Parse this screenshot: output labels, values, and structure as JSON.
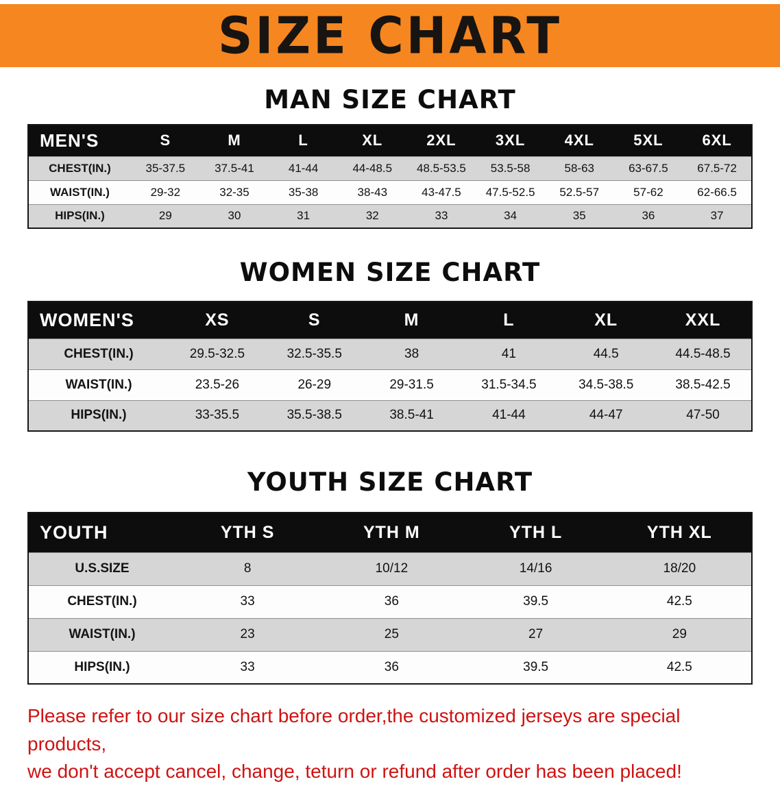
{
  "banner": {
    "title": "SIZE CHART"
  },
  "colors": {
    "banner_bg": "#F6861F",
    "banner_text": "#181411",
    "table_header_bg": "#0D0D0D",
    "table_header_text": "#FFFFFF",
    "row_alt_bg": "#D6D6D6",
    "row_bg": "#FDFDFD",
    "disclaimer_text": "#CE1312"
  },
  "chart_data": [
    {
      "type": "table",
      "title": "MAN SIZE CHART",
      "columns": [
        "MEN'S",
        "S",
        "M",
        "L",
        "XL",
        "2XL",
        "3XL",
        "4XL",
        "5XL",
        "6XL"
      ],
      "rows": [
        [
          "CHEST(IN.)",
          "35-37.5",
          "37.5-41",
          "41-44",
          "44-48.5",
          "48.5-53.5",
          "53.5-58",
          "58-63",
          "63-67.5",
          "67.5-72"
        ],
        [
          "WAIST(IN.)",
          "29-32",
          "32-35",
          "35-38",
          "38-43",
          "43-47.5",
          "47.5-52.5",
          "52.5-57",
          "57-62",
          "62-66.5"
        ],
        [
          "HIPS(IN.)",
          "29",
          "30",
          "31",
          "32",
          "33",
          "34",
          "35",
          "36",
          "37"
        ]
      ]
    },
    {
      "type": "table",
      "title": "WOMEN SIZE CHART",
      "columns": [
        "WOMEN'S",
        "XS",
        "S",
        "M",
        "L",
        "XL",
        "XXL"
      ],
      "rows": [
        [
          "CHEST(IN.)",
          "29.5-32.5",
          "32.5-35.5",
          "38",
          "41",
          "44.5",
          "44.5-48.5"
        ],
        [
          "WAIST(IN.)",
          "23.5-26",
          "26-29",
          "29-31.5",
          "31.5-34.5",
          "34.5-38.5",
          "38.5-42.5"
        ],
        [
          "HIPS(IN.)",
          "33-35.5",
          "35.5-38.5",
          "38.5-41",
          "41-44",
          "44-47",
          "47-50"
        ]
      ]
    },
    {
      "type": "table",
      "title": "YOUTH SIZE CHART",
      "columns": [
        "YOUTH",
        "YTH S",
        "YTH M",
        "YTH L",
        "YTH XL"
      ],
      "rows": [
        [
          "U.S.SIZE",
          "8",
          "10/12",
          "14/16",
          "18/20"
        ],
        [
          "CHEST(IN.)",
          "33",
          "36",
          "39.5",
          "42.5"
        ],
        [
          "WAIST(IN.)",
          "23",
          "25",
          "27",
          "29"
        ],
        [
          "HIPS(IN.)",
          "33",
          "36",
          "39.5",
          "42.5"
        ]
      ]
    }
  ],
  "disclaimer": {
    "line1": "Please refer to our size chart before order,the customized jerseys are special products,",
    "line2": "we don't accept cancel, change, teturn or refund after order has been placed!"
  }
}
